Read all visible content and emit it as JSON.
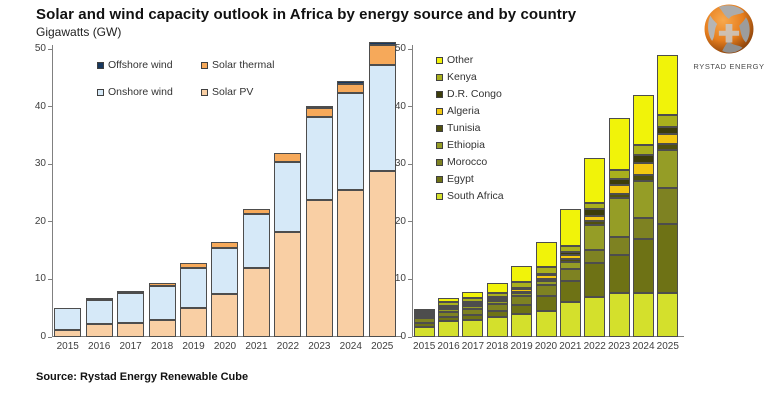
{
  "header": {
    "title": "Solar and wind capacity outlook in Africa by energy source and by country",
    "subtitle": "Gigawatts (GW)"
  },
  "logo": {
    "text": "RYSTAD ENERGY"
  },
  "source": "Source: Rystad Energy Renewable Cube",
  "colors": {
    "bar_border": "#4d4d4d",
    "axis": "#808080",
    "solar_pv": "#F9CFA4",
    "onshore_wind": "#D6E9F8",
    "solar_thermal": "#F6A95A",
    "offshore_wind": "#17375E",
    "south_africa": "#D4E02C",
    "egypt": "#6E7215",
    "morocco": "#7E8222",
    "ethiopia": "#959D26",
    "tunisia": "#50500E",
    "algeria": "#F2C811",
    "dr_congo": "#3C3C0A",
    "kenya": "#A9B01D",
    "other": "#F1F309"
  },
  "chart_data": [
    {
      "id": "by-energy-source",
      "type": "bar",
      "stacked": true,
      "title": "Capacity by energy source",
      "xlabel": "",
      "ylabel": "Gigawatts (GW)",
      "ylim": [
        0,
        50
      ],
      "ytick_step": 10,
      "grid": false,
      "legend_position": "top-left-inside",
      "categories": [
        "2015",
        "2016",
        "2017",
        "2018",
        "2019",
        "2020",
        "2021",
        "2022",
        "2023",
        "2024",
        "2025"
      ],
      "series": [
        {
          "name": "Solar PV",
          "color": "#F9CFA4",
          "values": [
            1.2,
            2.3,
            2.5,
            3.0,
            5.1,
            7.5,
            11.9,
            18.3,
            23.8,
            25.6,
            28.8
          ]
        },
        {
          "name": "Onshore wind",
          "color": "#D6E9F8",
          "values": [
            3.9,
            4.2,
            5.1,
            5.9,
            6.9,
            8.0,
            9.5,
            12.0,
            14.4,
            16.8,
            18.4
          ]
        },
        {
          "name": "Solar thermal",
          "color": "#F6A95A",
          "values": [
            0.0,
            0.3,
            0.4,
            0.5,
            0.8,
            1.0,
            0.9,
            1.6,
            1.5,
            1.6,
            3.5
          ]
        },
        {
          "name": "Offshore wind",
          "color": "#17375E",
          "values": [
            0.0,
            0.0,
            0.0,
            0.0,
            0.0,
            0.0,
            0.0,
            0.0,
            0.4,
            0.4,
            0.5
          ]
        }
      ],
      "totals": [
        5.1,
        6.8,
        8.0,
        9.4,
        12.8,
        16.5,
        22.3,
        31.9,
        40.1,
        44.4,
        51.2
      ],
      "legend": [
        {
          "label": "Offshore wind",
          "color": "#17375E"
        },
        {
          "label": "Solar thermal",
          "color": "#F6A95A"
        },
        {
          "label": "Onshore wind",
          "color": "#D6E9F8"
        },
        {
          "label": "Solar PV",
          "color": "#F9CFA4"
        }
      ]
    },
    {
      "id": "by-country",
      "type": "bar",
      "stacked": true,
      "title": "Capacity by country",
      "xlabel": "",
      "ylabel": "Gigawatts (GW)",
      "ylim": [
        0,
        50
      ],
      "ytick_step": 10,
      "grid": false,
      "legend_position": "top-left-inside",
      "categories": [
        "2015",
        "2016",
        "2017",
        "2018",
        "2019",
        "2020",
        "2021",
        "2022",
        "2023",
        "2024",
        "2025"
      ],
      "series": [
        {
          "name": "South Africa",
          "color": "#D4E02C",
          "values": [
            1.8,
            2.7,
            3.0,
            3.5,
            4.0,
            4.5,
            6.1,
            7.0,
            7.6,
            7.6,
            7.6
          ]
        },
        {
          "name": "Egypt",
          "color": "#6E7215",
          "values": [
            0.7,
            0.8,
            0.9,
            1.1,
            1.6,
            2.6,
            3.6,
            5.8,
            6.6,
            9.4,
            12.1
          ]
        },
        {
          "name": "Morocco",
          "color": "#7E8222",
          "values": [
            0.8,
            0.9,
            1.0,
            1.2,
            1.5,
            1.9,
            2.1,
            2.3,
            3.2,
            3.6,
            6.1
          ]
        },
        {
          "name": "Ethiopia",
          "color": "#959D26",
          "values": [
            0.3,
            0.4,
            0.4,
            0.4,
            0.5,
            0.8,
            1.3,
            4.3,
            6.7,
            6.5,
            6.7
          ]
        },
        {
          "name": "Tunisia",
          "color": "#50500E",
          "values": [
            0.2,
            0.2,
            0.2,
            0.2,
            0.2,
            0.3,
            0.4,
            0.8,
            0.8,
            1.0,
            1.0
          ]
        },
        {
          "name": "Algeria",
          "color": "#F2C811",
          "values": [
            0.3,
            0.3,
            0.4,
            0.4,
            0.5,
            0.6,
            0.7,
            0.8,
            1.5,
            2.1,
            1.7
          ]
        },
        {
          "name": "D.R. Congo",
          "color": "#3C3C0A",
          "values": [
            0.1,
            0.1,
            0.1,
            0.1,
            0.2,
            0.3,
            0.5,
            1.2,
            1.1,
            1.4,
            1.3
          ]
        },
        {
          "name": "Kenya",
          "color": "#A9B01D",
          "values": [
            0.3,
            0.6,
            0.7,
            0.8,
            1.0,
            1.1,
            1.1,
            1.0,
            1.5,
            1.7,
            2.0
          ]
        },
        {
          "name": "Other",
          "color": "#F1F309",
          "values": [
            0.4,
            0.8,
            1.1,
            1.6,
            2.9,
            4.4,
            6.5,
            7.9,
            9.1,
            8.8,
            10.5
          ]
        }
      ],
      "totals": [
        4.9,
        6.8,
        7.8,
        9.3,
        12.4,
        16.5,
        22.3,
        31.1,
        38.1,
        42.1,
        49.0
      ],
      "legend": [
        {
          "label": "Other",
          "color": "#F1F309"
        },
        {
          "label": "Kenya",
          "color": "#A9B01D"
        },
        {
          "label": "D.R. Congo",
          "color": "#3C3C0A"
        },
        {
          "label": "Algeria",
          "color": "#F2C811"
        },
        {
          "label": "Tunisia",
          "color": "#50500E"
        },
        {
          "label": "Ethiopia",
          "color": "#959D26"
        },
        {
          "label": "Morocco",
          "color": "#7E8222"
        },
        {
          "label": "Egypt",
          "color": "#6E7215"
        },
        {
          "label": "South Africa",
          "color": "#D4E02C"
        }
      ]
    }
  ]
}
